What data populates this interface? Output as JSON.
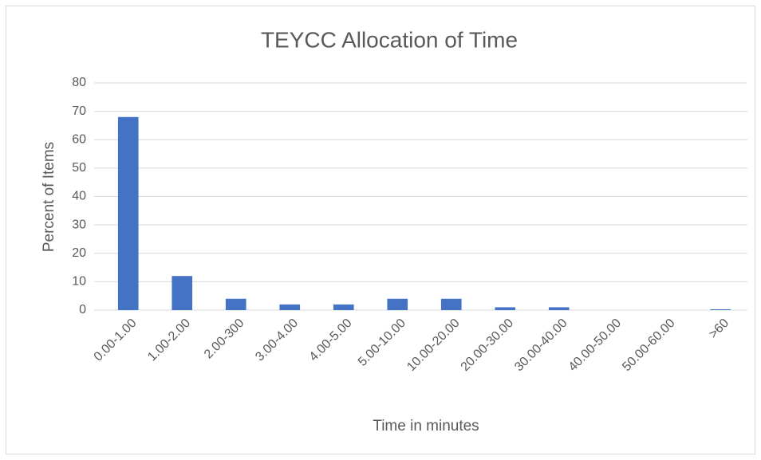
{
  "chart_data": {
    "type": "bar",
    "title": "TEYCC Allocation of Time",
    "x_label": "Time in minutes",
    "y_label": "Percent of Items",
    "categories": [
      "0.00-1.00",
      "1.00-2.00",
      "2.00-300",
      "3.00-4.00",
      "4.00-5.00",
      "5.00-10.00",
      "10.00-20.00",
      "20.00-30.00",
      "30.00-40.00",
      "40.00-50.00",
      "50.00-60.00",
      ">60"
    ],
    "values": [
      68,
      12,
      4,
      2,
      2,
      4,
      4,
      1,
      1,
      0,
      0,
      0.3
    ],
    "color": "#4472c4",
    "ylim": [
      0,
      80
    ],
    "yticks": [
      0,
      10,
      20,
      30,
      40,
      50,
      60,
      70,
      80
    ],
    "grid": true
  }
}
